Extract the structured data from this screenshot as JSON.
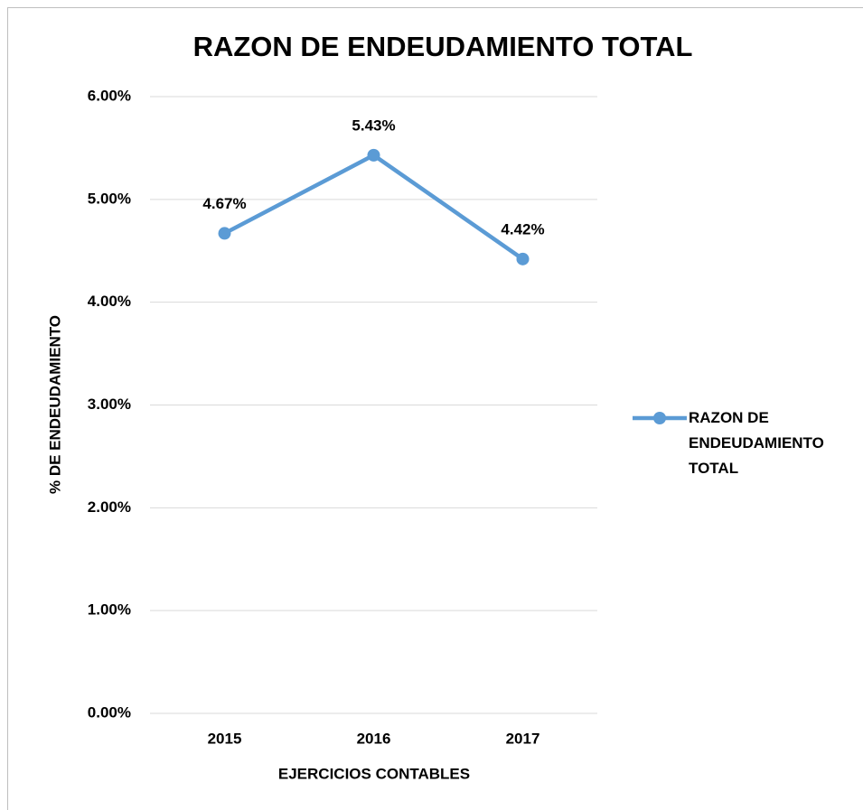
{
  "chart_data": {
    "type": "line",
    "title": "RAZON DE ENDEUDAMIENTO TOTAL",
    "x_label": "EJERCICIOS CONTABLES",
    "y_label": "% DE ENDEUDAMIENTO",
    "categories": [
      "2015",
      "2016",
      "2017"
    ],
    "series": [
      {
        "name": "RAZON DE ENDEUDAMIENTO TOTAL",
        "color": "#5b9bd5",
        "values": [
          4.67,
          5.43,
          4.42
        ],
        "value_labels": [
          "4.67%",
          "5.43%",
          "4.42%"
        ]
      }
    ],
    "ylim": [
      0,
      6
    ],
    "yticks": [
      {
        "value": 0,
        "label": "0.00%"
      },
      {
        "value": 1,
        "label": "1.00%"
      },
      {
        "value": 2,
        "label": "2.00%"
      },
      {
        "value": 3,
        "label": "3.00%"
      },
      {
        "value": 4,
        "label": "4.00%"
      },
      {
        "value": 5,
        "label": "5.00%"
      },
      {
        "value": 6,
        "label": "6.00%"
      }
    ],
    "grid": true,
    "legend": "right"
  }
}
